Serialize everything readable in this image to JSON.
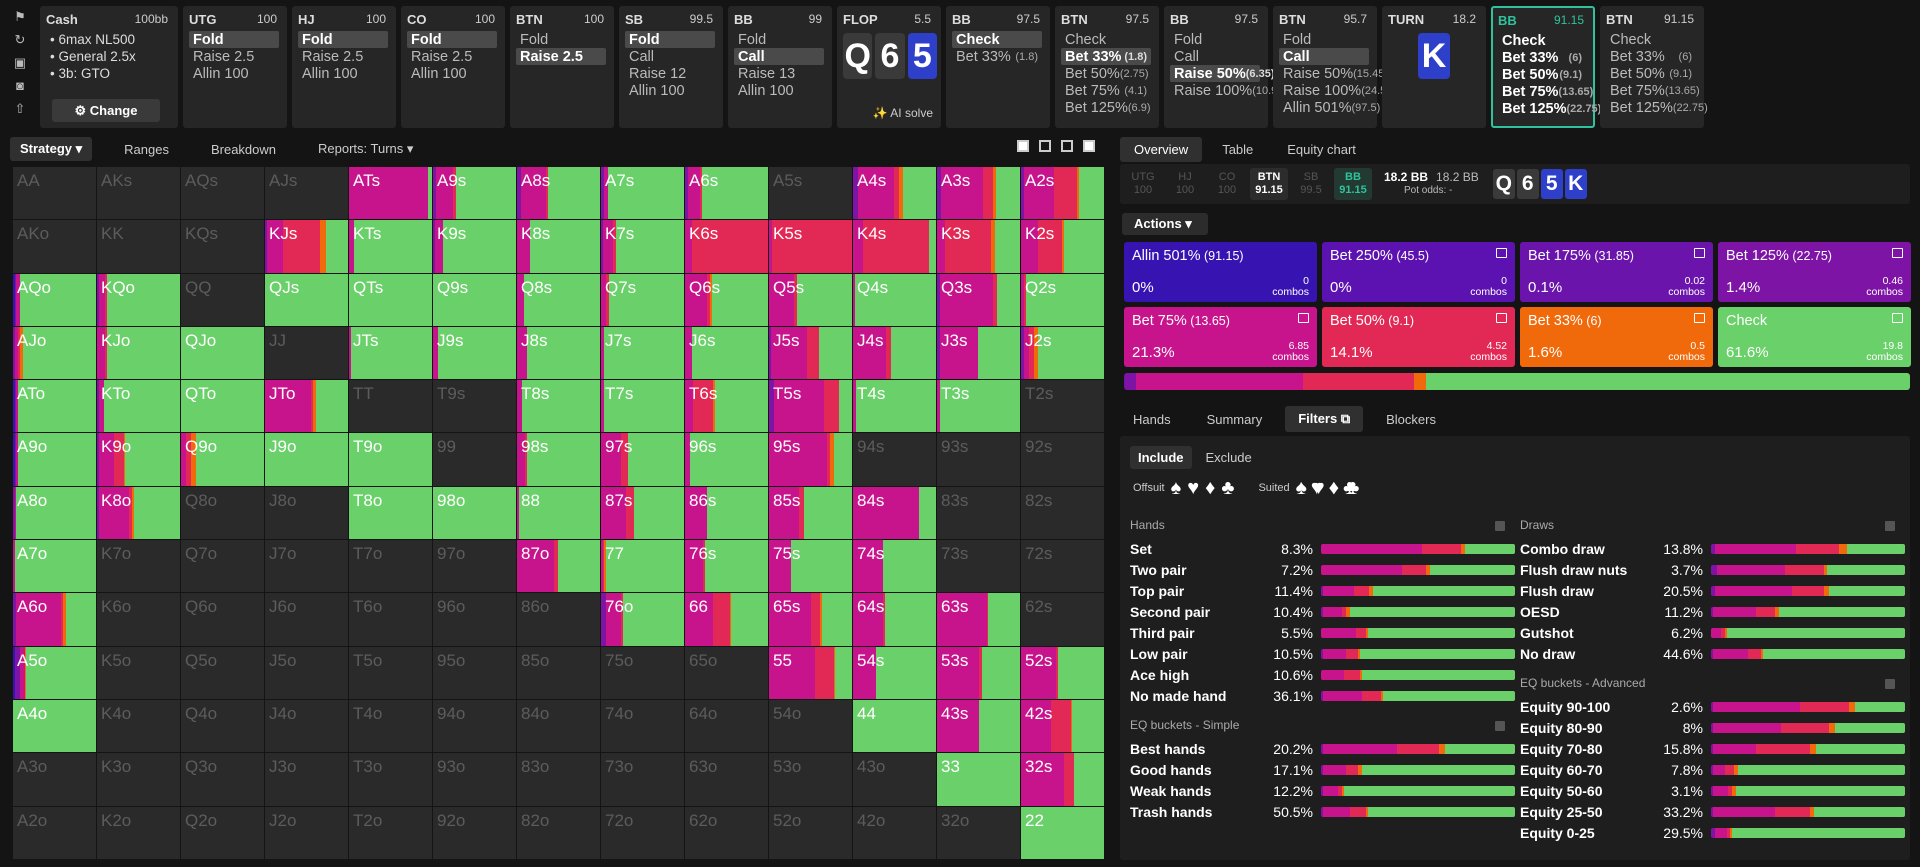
{
  "colors": {
    "green": "#6ad06a",
    "magenta": "#c8148c",
    "red": "#e22854",
    "orange": "#f0690a",
    "purple": "#7d14a6",
    "indigo": "#3714b2",
    "empty": "#2a2a2a",
    "accent": "#2fc29c",
    "board_blue": "#2e3fc9"
  },
  "toolbar": {
    "icons": [
      "bookmark-icon",
      "history-icon",
      "save-icon",
      "gamepad-icon",
      "export-icon"
    ]
  },
  "cash": {
    "title": "Cash",
    "stack": "100bb",
    "lines": [
      "6max NL500",
      "General 2.5x",
      "3b: GTO"
    ],
    "change_label": "Change",
    "change_icon": "⚙"
  },
  "history": [
    {
      "pos": "UTG",
      "stack": "100",
      "actions": [
        {
          "label": "Fold",
          "sel": true
        },
        {
          "label": "Raise 2.5"
        },
        {
          "label": "Allin 100"
        }
      ]
    },
    {
      "pos": "HJ",
      "stack": "100",
      "actions": [
        {
          "label": "Fold",
          "sel": true
        },
        {
          "label": "Raise 2.5"
        },
        {
          "label": "Allin 100"
        }
      ]
    },
    {
      "pos": "CO",
      "stack": "100",
      "actions": [
        {
          "label": "Fold",
          "sel": true
        },
        {
          "label": "Raise 2.5"
        },
        {
          "label": "Allin 100"
        }
      ]
    },
    {
      "pos": "BTN",
      "stack": "100",
      "actions": [
        {
          "label": "Fold"
        },
        {
          "label": "Raise 2.5",
          "sel": true
        }
      ]
    },
    {
      "pos": "SB",
      "stack": "99.5",
      "actions": [
        {
          "label": "Fold",
          "sel": true
        },
        {
          "label": "Call"
        },
        {
          "label": "Raise 12"
        },
        {
          "label": "Allin 100"
        }
      ]
    },
    {
      "pos": "BB",
      "stack": "99",
      "actions": [
        {
          "label": "Fold"
        },
        {
          "label": "Call",
          "sel": true
        },
        {
          "label": "Raise 13"
        },
        {
          "label": "Allin 100"
        }
      ]
    },
    {
      "street": "FLOP",
      "pot": "5.5",
      "cards": [
        {
          "r": "Q",
          "blue": false
        },
        {
          "r": "6",
          "blue": false
        },
        {
          "r": "5",
          "blue": true
        }
      ],
      "ai_label": "✨ AI solve"
    },
    {
      "pos": "BB",
      "stack": "97.5",
      "actions": [
        {
          "label": "Check",
          "sel": true
        },
        {
          "label": "Bet 33%",
          "size": "(1.8)"
        }
      ]
    },
    {
      "pos": "BTN",
      "stack": "97.5",
      "actions": [
        {
          "label": "Check"
        },
        {
          "label": "Bet 33%",
          "size": "(1.8)",
          "sel": true
        },
        {
          "label": "Bet 50%",
          "size": "(2.75)"
        },
        {
          "label": "Bet 75%",
          "size": "(4.1)"
        },
        {
          "label": "Bet 125%",
          "size": "(6.9)"
        }
      ]
    },
    {
      "pos": "BB",
      "stack": "97.5",
      "actions": [
        {
          "label": "Fold"
        },
        {
          "label": "Call"
        },
        {
          "label": "Raise 50%",
          "size": "(6.35)",
          "sel": true
        },
        {
          "label": "Raise 100%",
          "size": "(10.9)"
        }
      ]
    },
    {
      "pos": "BTN",
      "stack": "95.7",
      "actions": [
        {
          "label": "Fold"
        },
        {
          "label": "Call",
          "sel": true
        },
        {
          "label": "Raise 50%",
          "size": "(15.45)"
        },
        {
          "label": "Raise 100%",
          "size": "(24.55)"
        },
        {
          "label": "Allin 501%",
          "size": "(97.5)"
        }
      ]
    },
    {
      "street": "TURN",
      "pot": "18.2",
      "cards": [
        {
          "r": "K",
          "blue": true
        }
      ]
    },
    {
      "pos": "BB",
      "stack": "91.15",
      "hl": true,
      "actions": [
        {
          "label": "Check",
          "b": true
        },
        {
          "label": "Bet 33%",
          "size": "(6)",
          "b": true
        },
        {
          "label": "Bet 50%",
          "size": "(9.1)",
          "b": true
        },
        {
          "label": "Bet 75%",
          "size": "(13.65)",
          "b": true
        },
        {
          "label": "Bet 125%",
          "size": "(22.75)",
          "b": true
        }
      ]
    },
    {
      "pos": "BTN",
      "stack": "91.15",
      "actions": [
        {
          "label": "Check"
        },
        {
          "label": "Bet 33%",
          "size": "(6)"
        },
        {
          "label": "Bet 50%",
          "size": "(9.1)"
        },
        {
          "label": "Bet 75%",
          "size": "(13.65)"
        },
        {
          "label": "Bet 125%",
          "size": "(22.75)"
        }
      ]
    }
  ],
  "tabs": {
    "items": [
      {
        "label": "Strategy ▾",
        "active": true
      },
      {
        "label": "Ranges"
      },
      {
        "label": "Breakdown"
      },
      {
        "label": "Reports: Turns ▾"
      }
    ]
  },
  "grid": {
    "rows": [
      [
        "AA",
        "AKs",
        "AQs",
        "AJs",
        "ATs",
        "A9s",
        "A8s",
        "A7s",
        "A6s",
        "A5s",
        "A4s",
        "A3s",
        "A2s"
      ],
      [
        "AKo",
        "KK",
        "KQs",
        "KJs",
        "KTs",
        "K9s",
        "K8s",
        "K7s",
        "K6s",
        "K5s",
        "K4s",
        "K3s",
        "K2s"
      ],
      [
        "AQo",
        "KQo",
        "QQ",
        "QJs",
        "QTs",
        "Q9s",
        "Q8s",
        "Q7s",
        "Q6s",
        "Q5s",
        "Q4s",
        "Q3s",
        "Q2s"
      ],
      [
        "AJo",
        "KJo",
        "QJo",
        "JJ",
        "JTs",
        "J9s",
        "J8s",
        "J7s",
        "J6s",
        "J5s",
        "J4s",
        "J3s",
        "J2s"
      ],
      [
        "ATo",
        "KTo",
        "QTo",
        "JTo",
        "TT",
        "T9s",
        "T8s",
        "T7s",
        "T6s",
        "T5s",
        "T4s",
        "T3s",
        "T2s"
      ],
      [
        "A9o",
        "K9o",
        "Q9o",
        "J9o",
        "T9o",
        "99",
        "98s",
        "97s",
        "96s",
        "95s",
        "94s",
        "93s",
        "92s"
      ],
      [
        "A8o",
        "K8o",
        "Q8o",
        "J8o",
        "T8o",
        "98o",
        "88",
        "87s",
        "86s",
        "85s",
        "84s",
        "83s",
        "82s"
      ],
      [
        "A7o",
        "K7o",
        "Q7o",
        "J7o",
        "T7o",
        "97o",
        "87o",
        "77",
        "76s",
        "75s",
        "74s",
        "73s",
        "72s"
      ],
      [
        "A6o",
        "K6o",
        "Q6o",
        "J6o",
        "T6o",
        "96o",
        "86o",
        "76o",
        "66",
        "65s",
        "64s",
        "63s",
        "62s"
      ],
      [
        "A5o",
        "K5o",
        "Q5o",
        "J5o",
        "T5o",
        "95o",
        "85o",
        "75o",
        "65o",
        "55",
        "54s",
        "53s",
        "52s"
      ],
      [
        "A4o",
        "K4o",
        "Q4o",
        "J4o",
        "T4o",
        "94o",
        "84o",
        "74o",
        "64o",
        "54o",
        "44",
        "43s",
        "42s"
      ],
      [
        "A3o",
        "K3o",
        "Q3o",
        "J3o",
        "T3o",
        "93o",
        "83o",
        "73o",
        "63o",
        "53o",
        "43o",
        "33",
        "32s"
      ],
      [
        "A2o",
        "K2o",
        "Q2o",
        "J2o",
        "T2o",
        "92o",
        "82o",
        "72o",
        "62o",
        "52o",
        "42o",
        "32o",
        "22"
      ]
    ]
  },
  "right": {
    "tabs": [
      {
        "label": "Overview",
        "active": true
      },
      {
        "label": "Table"
      },
      {
        "label": "Equity chart"
      }
    ],
    "positions": [
      {
        "p": "UTG",
        "s": "100"
      },
      {
        "p": "HJ",
        "s": "100"
      },
      {
        "p": "CO",
        "s": "100"
      },
      {
        "p": "BTN",
        "s": "91.15",
        "a": true
      },
      {
        "p": "SB",
        "s": "99.5"
      },
      {
        "p": "BB",
        "s": "91.15",
        "hl": true
      }
    ],
    "pot_main": "18.2 BB",
    "pot_alt": "18.2 BB",
    "pot_odds": "Pot odds: -",
    "board": [
      {
        "r": "Q"
      },
      {
        "r": "6"
      },
      {
        "r": "5",
        "blue": true
      },
      {
        "r": "K",
        "blue": true
      }
    ],
    "actions_label": "Actions",
    "action_boxes": [
      {
        "label": "Allin 501%",
        "size": "(91.15)",
        "pct": "0%",
        "combos": "0",
        "color": "#3714b2",
        "icon": false
      },
      {
        "label": "Bet 250%",
        "size": "(45.5)",
        "pct": "0%",
        "combos": "0",
        "color": "#5c12b0",
        "icon": true
      },
      {
        "label": "Bet 175%",
        "size": "(31.85)",
        "pct": "0.1%",
        "combos": "0.02",
        "color": "#6a14ac",
        "icon": true
      },
      {
        "label": "Bet 125%",
        "size": "(22.75)",
        "pct": "1.4%",
        "combos": "0.46",
        "color": "#7d14a6",
        "icon": true
      },
      {
        "label": "Bet 75%",
        "size": "(13.65)",
        "pct": "21.3%",
        "combos": "6.85",
        "color": "#c8148c",
        "icon": true
      },
      {
        "label": "Bet 50%",
        "size": "(9.1)",
        "pct": "14.1%",
        "combos": "4.52",
        "color": "#e22854",
        "icon": true
      },
      {
        "label": "Bet 33%",
        "size": "(6)",
        "pct": "1.6%",
        "combos": "0.5",
        "color": "#f0690a",
        "icon": true
      },
      {
        "label": "Check",
        "size": "",
        "pct": "61.6%",
        "combos": "19.8",
        "color": "#6ad06a",
        "icon": true
      }
    ],
    "combos_word": "combos",
    "bottom_tabs": [
      {
        "label": "Hands"
      },
      {
        "label": "Summary"
      },
      {
        "label": "Filters ⧉",
        "active": true
      },
      {
        "label": "Blockers"
      }
    ],
    "include": "Include",
    "exclude": "Exclude",
    "offsuit": "Offsuit",
    "suited": "Suited",
    "suits": [
      "♠",
      "♥",
      "♦",
      "♣"
    ],
    "hands_title": "Hands",
    "hands": [
      {
        "l": "Set",
        "p": "8.3%",
        "d": [
          0,
          0,
          0.52,
          0.2,
          0.02,
          0.26
        ]
      },
      {
        "l": "Two pair",
        "p": "7.2%",
        "d": [
          0,
          0,
          0.42,
          0.12,
          0.02,
          0.44
        ]
      },
      {
        "l": "Top pair",
        "p": "11.4%",
        "d": [
          0,
          0.01,
          0.16,
          0.08,
          0.02,
          0.73
        ]
      },
      {
        "l": "Second pair",
        "p": "10.4%",
        "d": [
          0,
          0.01,
          0.1,
          0.02,
          0.02,
          0.85
        ]
      },
      {
        "l": "Third pair",
        "p": "5.5%",
        "d": [
          0,
          0,
          0.18,
          0.05,
          0.01,
          0.76
        ]
      },
      {
        "l": "Low pair",
        "p": "10.5%",
        "d": [
          0,
          0.01,
          0.12,
          0.06,
          0.01,
          0.8
        ]
      },
      {
        "l": "Ace high",
        "p": "10.6%",
        "d": [
          0,
          0,
          0.12,
          0.08,
          0.01,
          0.79
        ]
      },
      {
        "l": "No made hand",
        "p": "36.1%",
        "d": [
          0,
          0.01,
          0.2,
          0.1,
          0.01,
          0.68
        ]
      }
    ],
    "eqs_title": "EQ buckets - Simple",
    "eqs": [
      {
        "l": "Best hands",
        "p": "20.2%",
        "d": [
          0,
          0.01,
          0.38,
          0.22,
          0.03,
          0.36
        ]
      },
      {
        "l": "Good hands",
        "p": "17.1%",
        "d": [
          0,
          0.01,
          0.12,
          0.06,
          0.02,
          0.79
        ]
      },
      {
        "l": "Weak hands",
        "p": "12.2%",
        "d": [
          0,
          0.01,
          0.08,
          0.02,
          0.01,
          0.88
        ]
      },
      {
        "l": "Trash hands",
        "p": "50.5%",
        "d": [
          0,
          0.01,
          0.14,
          0.08,
          0.01,
          0.76
        ]
      }
    ],
    "draws_title": "Draws",
    "draws": [
      {
        "l": "Combo draw",
        "p": "13.8%",
        "d": [
          0,
          0.02,
          0.42,
          0.22,
          0.04,
          0.3
        ]
      },
      {
        "l": "Flush draw nuts",
        "p": "3.7%",
        "d": [
          0,
          0.03,
          0.35,
          0.2,
          0.02,
          0.4
        ]
      },
      {
        "l": "Flush draw",
        "p": "20.5%",
        "d": [
          0,
          0.02,
          0.4,
          0.16,
          0.03,
          0.39
        ]
      },
      {
        "l": "OESD",
        "p": "11.2%",
        "d": [
          0,
          0.01,
          0.22,
          0.1,
          0.02,
          0.65
        ]
      },
      {
        "l": "Gutshot",
        "p": "6.2%",
        "d": [
          0,
          0,
          0.05,
          0.02,
          0.01,
          0.92
        ]
      },
      {
        "l": "No draw",
        "p": "44.6%",
        "d": [
          0,
          0.01,
          0.18,
          0.07,
          0.01,
          0.73
        ]
      }
    ],
    "eqa_title": "EQ buckets - Advanced",
    "eqa": [
      {
        "l": "Equity 90-100",
        "p": "2.6%",
        "d": [
          0,
          0.01,
          0.45,
          0.25,
          0.03,
          0.26
        ]
      },
      {
        "l": "Equity 80-90",
        "p": "8%",
        "d": [
          0,
          0.01,
          0.35,
          0.25,
          0.03,
          0.36
        ]
      },
      {
        "l": "Equity 70-80",
        "p": "15.8%",
        "d": [
          0,
          0.01,
          0.22,
          0.28,
          0.03,
          0.46
        ]
      },
      {
        "l": "Equity 60-70",
        "p": "7.8%",
        "d": [
          0,
          0.01,
          0.06,
          0.05,
          0.02,
          0.86
        ]
      },
      {
        "l": "Equity 50-60",
        "p": "3.1%",
        "d": [
          0,
          0.01,
          0.08,
          0.02,
          0.02,
          0.87
        ]
      },
      {
        "l": "Equity 25-50",
        "p": "33.2%",
        "d": [
          0,
          0.01,
          0.32,
          0.18,
          0.02,
          0.47
        ]
      },
      {
        "l": "Equity 0-25",
        "p": "29.5%",
        "d": [
          0,
          0.02,
          0.06,
          0.02,
          0.01,
          0.89
        ]
      }
    ]
  }
}
